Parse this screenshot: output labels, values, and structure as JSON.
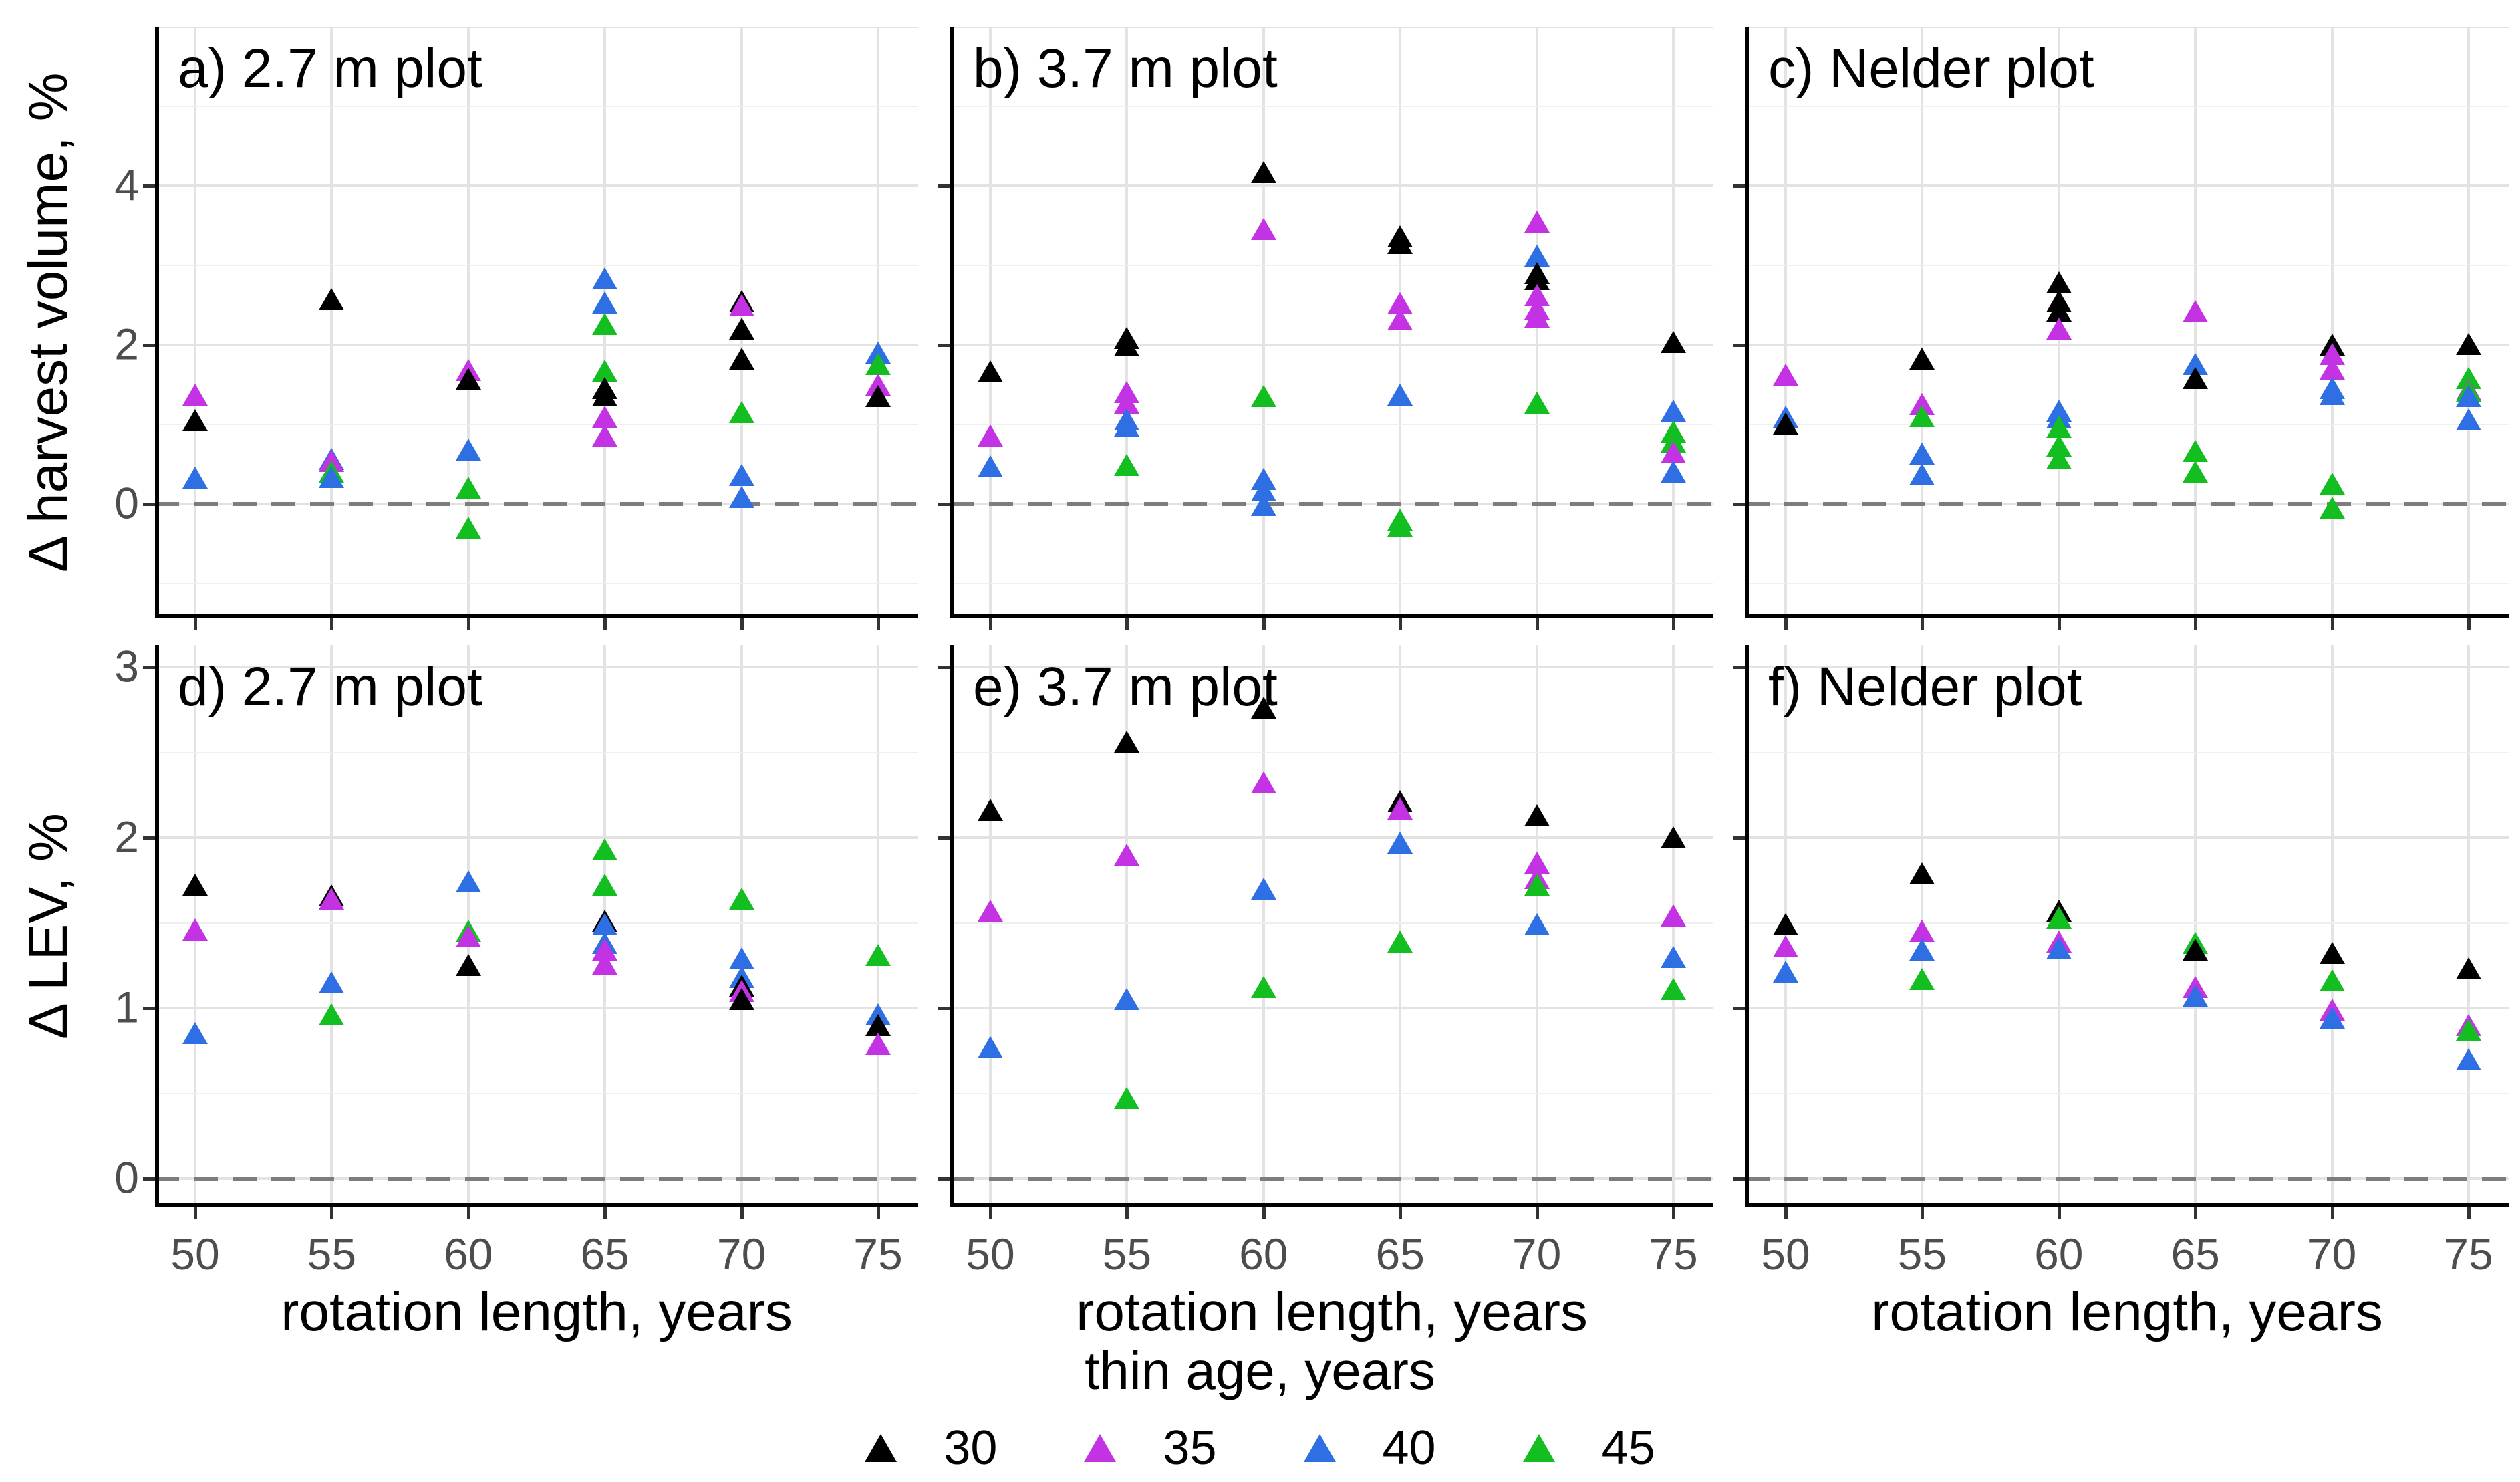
{
  "figure_title": "",
  "axes": {
    "x": {
      "label": "rotation length, years",
      "ticks": [
        50,
        55,
        60,
        65,
        70,
        75
      ],
      "min": 50,
      "max": 75
    },
    "y_top_row": {
      "label": "Δ harvest volume, %",
      "ticks": [
        0,
        2,
        4
      ],
      "gridlines_major": [
        0,
        2,
        4,
        6
      ],
      "gridlines_minor": [
        -1,
        1,
        3,
        5
      ],
      "zero_line": 0
    },
    "y_bottom_row": {
      "label": "Δ LEV, %",
      "ticks": [
        0,
        1,
        2,
        3
      ],
      "gridlines_major": [
        0,
        1,
        2,
        3
      ],
      "gridlines_minor": [
        0.5,
        1.5,
        2.5
      ],
      "zero_line": 0
    }
  },
  "legend": {
    "title": "thin age, years",
    "entries": [
      {
        "label": "30",
        "color": "#000000"
      },
      {
        "label": "35",
        "color": "#c433e3"
      },
      {
        "label": "40",
        "color": "#2e6fe3"
      },
      {
        "label": "45",
        "color": "#12be20"
      }
    ]
  },
  "style": {
    "grid_major_color": "#e3e3e3",
    "grid_minor_color": "#efefef",
    "zero_dash_color": "#7d7d7d",
    "axis_color": "#000000",
    "tick_color": "#333333",
    "tick_label_color": "#4d4d4d"
  },
  "chart_data": [
    {
      "type": "scatter",
      "panel": "a",
      "title": "a) 2.7 m plot",
      "row": 0,
      "col": 0,
      "ylabel": "Δ harvest volume, %",
      "series": [
        {
          "name": "30",
          "points": [
            [
              50,
              1.05
            ],
            [
              55,
              2.57
            ],
            [
              60,
              1.57
            ],
            [
              65,
              1.45
            ],
            [
              65,
              1.36
            ],
            [
              70,
              2.55
            ],
            [
              70,
              2.2
            ],
            [
              70,
              1.82
            ],
            [
              75,
              1.35
            ]
          ]
        },
        {
          "name": "35",
          "points": [
            [
              50,
              1.37
            ],
            [
              55,
              0.54
            ],
            [
              60,
              1.68
            ],
            [
              65,
              1.09
            ],
            [
              65,
              0.86
            ],
            [
              70,
              2.5
            ],
            [
              75,
              1.5
            ]
          ]
        },
        {
          "name": "40",
          "points": [
            [
              50,
              0.33
            ],
            [
              55,
              0.56
            ],
            [
              55,
              0.34
            ],
            [
              60,
              0.68
            ],
            [
              65,
              2.83
            ],
            [
              65,
              2.53
            ],
            [
              70,
              0.36
            ],
            [
              70,
              0.08
            ],
            [
              75,
              1.9
            ]
          ]
        },
        {
          "name": "45",
          "points": [
            [
              55,
              0.4
            ],
            [
              60,
              0.2
            ],
            [
              60,
              -0.3
            ],
            [
              65,
              2.26
            ],
            [
              65,
              1.67
            ],
            [
              70,
              1.15
            ],
            [
              75,
              1.76
            ]
          ]
        }
      ]
    },
    {
      "type": "scatter",
      "panel": "b",
      "title": "b) 3.7 m plot",
      "row": 0,
      "col": 1,
      "ylabel": "Δ harvest volume, %",
      "series": [
        {
          "name": "30",
          "points": [
            [
              50,
              1.66
            ],
            [
              55,
              2.08
            ],
            [
              55,
              1.99
            ],
            [
              60,
              4.17
            ],
            [
              65,
              3.36
            ],
            [
              65,
              3.28
            ],
            [
              70,
              2.9
            ],
            [
              70,
              2.82
            ],
            [
              75,
              2.03
            ]
          ]
        },
        {
          "name": "35",
          "points": [
            [
              50,
              0.86
            ],
            [
              55,
              1.4
            ],
            [
              55,
              1.27
            ],
            [
              60,
              3.45
            ],
            [
              65,
              2.52
            ],
            [
              65,
              2.32
            ],
            [
              70,
              3.55
            ],
            [
              70,
              2.62
            ],
            [
              70,
              2.45
            ],
            [
              70,
              2.35
            ],
            [
              75,
              0.65
            ]
          ]
        },
        {
          "name": "40",
          "points": [
            [
              50,
              0.47
            ],
            [
              55,
              1.06
            ],
            [
              55,
              0.98
            ],
            [
              60,
              0.31
            ],
            [
              60,
              0.17
            ],
            [
              60,
              -0.02
            ],
            [
              65,
              1.37
            ],
            [
              70,
              3.12
            ],
            [
              75,
              1.17
            ],
            [
              75,
              0.4
            ]
          ]
        },
        {
          "name": "45",
          "points": [
            [
              55,
              0.49
            ],
            [
              60,
              1.35
            ],
            [
              65,
              -0.2
            ],
            [
              65,
              -0.28
            ],
            [
              70,
              1.27
            ],
            [
              75,
              0.91
            ],
            [
              75,
              0.78
            ]
          ]
        }
      ]
    },
    {
      "type": "scatter",
      "panel": "c",
      "title": "c) Nelder plot",
      "row": 0,
      "col": 2,
      "ylabel": "Δ harvest volume, %",
      "series": [
        {
          "name": "30",
          "points": [
            [
              50,
              1.01
            ],
            [
              55,
              1.82
            ],
            [
              60,
              2.78
            ],
            [
              60,
              2.55
            ],
            [
              60,
              2.43
            ],
            [
              65,
              1.58
            ],
            [
              70,
              2.0
            ],
            [
              75,
              2.01
            ]
          ]
        },
        {
          "name": "35",
          "points": [
            [
              50,
              1.62
            ],
            [
              55,
              1.25
            ],
            [
              60,
              2.2
            ],
            [
              65,
              2.42
            ],
            [
              70,
              1.88
            ],
            [
              70,
              1.7
            ],
            [
              75,
              1.44
            ]
          ]
        },
        {
          "name": "40",
          "points": [
            [
              50,
              1.09
            ],
            [
              55,
              0.63
            ],
            [
              55,
              0.37
            ],
            [
              60,
              1.17
            ],
            [
              60,
              1.08
            ],
            [
              65,
              1.76
            ],
            [
              70,
              1.45
            ],
            [
              70,
              1.38
            ],
            [
              75,
              1.35
            ],
            [
              75,
              1.06
            ]
          ]
        },
        {
          "name": "45",
          "points": [
            [
              55,
              1.1
            ],
            [
              60,
              0.97
            ],
            [
              60,
              0.73
            ],
            [
              60,
              0.57
            ],
            [
              65,
              0.66
            ],
            [
              65,
              0.4
            ],
            [
              70,
              0.25
            ],
            [
              70,
              -0.05
            ],
            [
              75,
              1.58
            ],
            [
              75,
              1.42
            ]
          ]
        }
      ]
    },
    {
      "type": "scatter",
      "panel": "d",
      "title": "d) 2.7 m plot",
      "row": 1,
      "col": 0,
      "ylabel": "Δ LEV, %",
      "series": [
        {
          "name": "30",
          "points": [
            [
              50,
              1.72
            ],
            [
              55,
              1.66
            ],
            [
              60,
              1.25
            ],
            [
              65,
              1.51
            ],
            [
              70,
              1.13
            ],
            [
              70,
              1.05
            ],
            [
              75,
              0.9
            ]
          ]
        },
        {
          "name": "35",
          "points": [
            [
              50,
              1.46
            ],
            [
              55,
              1.64
            ],
            [
              60,
              1.42
            ],
            [
              65,
              1.34
            ],
            [
              65,
              1.26
            ],
            [
              70,
              1.1
            ],
            [
              75,
              0.79
            ]
          ]
        },
        {
          "name": "40",
          "points": [
            [
              50,
              0.85
            ],
            [
              55,
              1.15
            ],
            [
              60,
              1.74
            ],
            [
              65,
              1.49
            ],
            [
              65,
              1.38
            ],
            [
              70,
              1.29
            ],
            [
              70,
              1.18
            ],
            [
              75,
              0.96
            ]
          ]
        },
        {
          "name": "45",
          "points": [
            [
              55,
              0.96
            ],
            [
              60,
              1.45
            ],
            [
              65,
              1.93
            ],
            [
              65,
              1.72
            ],
            [
              70,
              1.64
            ],
            [
              75,
              1.31
            ]
          ]
        }
      ]
    },
    {
      "type": "scatter",
      "panel": "e",
      "title": "e) 3.7 m plot",
      "row": 1,
      "col": 1,
      "ylabel": "Δ LEV, %",
      "series": [
        {
          "name": "30",
          "points": [
            [
              50,
              2.16
            ],
            [
              55,
              2.56
            ],
            [
              60,
              2.76
            ],
            [
              65,
              2.21
            ],
            [
              70,
              2.13
            ],
            [
              75,
              2.0
            ]
          ]
        },
        {
          "name": "35",
          "points": [
            [
              50,
              1.57
            ],
            [
              55,
              1.9
            ],
            [
              60,
              2.32
            ],
            [
              65,
              2.17
            ],
            [
              70,
              1.85
            ],
            [
              70,
              1.76
            ],
            [
              75,
              1.54
            ]
          ]
        },
        {
          "name": "40",
          "points": [
            [
              50,
              0.77
            ],
            [
              55,
              1.05
            ],
            [
              60,
              1.7
            ],
            [
              65,
              1.97
            ],
            [
              70,
              1.49
            ],
            [
              75,
              1.3
            ]
          ]
        },
        {
          "name": "45",
          "points": [
            [
              55,
              0.47
            ],
            [
              60,
              1.12
            ],
            [
              65,
              1.39
            ],
            [
              70,
              1.72
            ],
            [
              75,
              1.11
            ]
          ]
        }
      ]
    },
    {
      "type": "scatter",
      "panel": "f",
      "title": "f) Nelder plot",
      "row": 1,
      "col": 2,
      "ylabel": "Δ LEV, %",
      "series": [
        {
          "name": "30",
          "points": [
            [
              50,
              1.49
            ],
            [
              55,
              1.79
            ],
            [
              60,
              1.57
            ],
            [
              65,
              1.34
            ],
            [
              70,
              1.32
            ],
            [
              75,
              1.23
            ]
          ]
        },
        {
          "name": "35",
          "points": [
            [
              50,
              1.36
            ],
            [
              55,
              1.45
            ],
            [
              60,
              1.39
            ],
            [
              65,
              1.12
            ],
            [
              70,
              0.99
            ],
            [
              75,
              0.9
            ]
          ]
        },
        {
          "name": "40",
          "points": [
            [
              50,
              1.21
            ],
            [
              55,
              1.34
            ],
            [
              60,
              1.35
            ],
            [
              65,
              1.07
            ],
            [
              70,
              0.94
            ],
            [
              75,
              0.7
            ]
          ]
        },
        {
          "name": "45",
          "points": [
            [
              55,
              1.17
            ],
            [
              60,
              1.53
            ],
            [
              65,
              1.38
            ],
            [
              70,
              1.16
            ],
            [
              75,
              0.87
            ]
          ]
        }
      ]
    }
  ]
}
